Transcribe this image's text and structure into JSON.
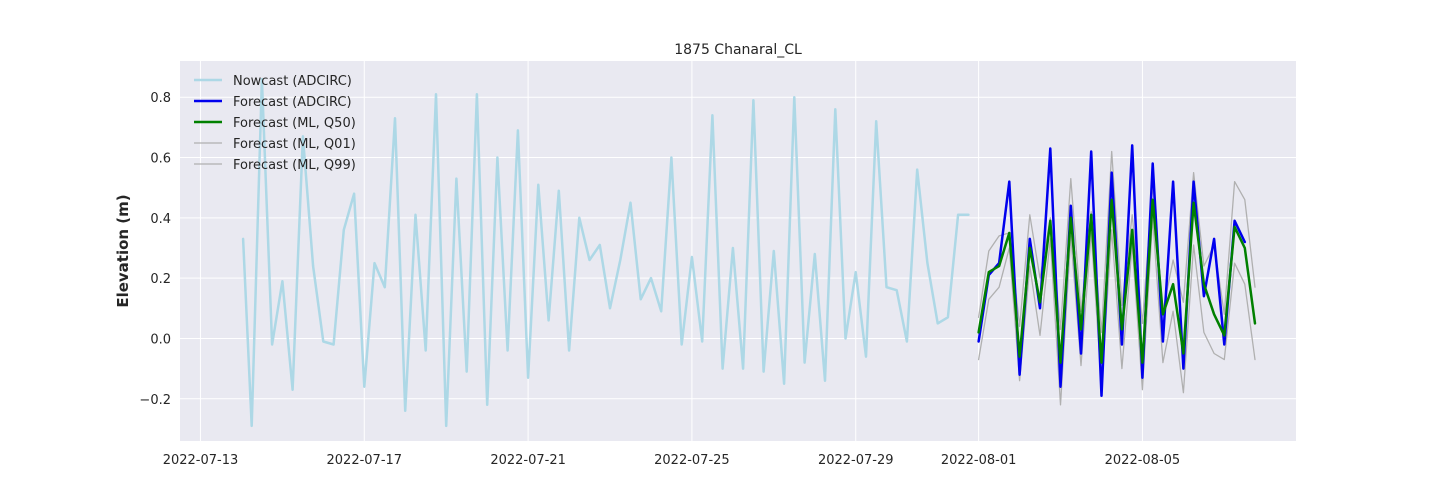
{
  "chart_data": {
    "type": "line",
    "title": "1875 Chanaral_CL",
    "xlabel": "",
    "ylabel": "Elevation (m)",
    "x_type": "date",
    "xlim": [
      "2022-07-12T12:00",
      "2022-08-08T18:00"
    ],
    "ylim": [
      -0.34,
      0.92
    ],
    "x_ticks": [
      "2022-07-13",
      "2022-07-17",
      "2022-07-21",
      "2022-07-25",
      "2022-07-29",
      "2022-08-01",
      "2022-08-05"
    ],
    "y_ticks": [
      -0.2,
      0.0,
      0.2,
      0.4,
      0.6,
      0.8
    ],
    "y_tick_labels": [
      "−0.2",
      "0.0",
      "0.2",
      "0.4",
      "0.6",
      "0.8"
    ],
    "grid": true,
    "background": "#e9e9f1",
    "legend_position": "top-left",
    "series": [
      {
        "name": "Nowcast (ADCIRC)",
        "color": "#add8e6",
        "width": 2.5,
        "points": [
          [
            "2022-07-14T01:00",
            0.33
          ],
          [
            "2022-07-14T06:00",
            -0.29
          ],
          [
            "2022-07-14T12:00",
            0.86
          ],
          [
            "2022-07-14T18:00",
            -0.02
          ],
          [
            "2022-07-15T00:00",
            0.19
          ],
          [
            "2022-07-15T06:00",
            -0.17
          ],
          [
            "2022-07-15T12:00",
            0.67
          ],
          [
            "2022-07-15T18:00",
            0.24
          ],
          [
            "2022-07-16T00:00",
            -0.01
          ],
          [
            "2022-07-16T06:00",
            -0.02
          ],
          [
            "2022-07-16T12:00",
            0.36
          ],
          [
            "2022-07-16T18:00",
            0.48
          ],
          [
            "2022-07-17T00:00",
            -0.16
          ],
          [
            "2022-07-17T06:00",
            0.25
          ],
          [
            "2022-07-17T12:00",
            0.17
          ],
          [
            "2022-07-17T18:00",
            0.73
          ],
          [
            "2022-07-18T00:00",
            -0.24
          ],
          [
            "2022-07-18T06:00",
            0.41
          ],
          [
            "2022-07-18T12:00",
            -0.04
          ],
          [
            "2022-07-18T18:00",
            0.81
          ],
          [
            "2022-07-19T00:00",
            -0.29
          ],
          [
            "2022-07-19T06:00",
            0.53
          ],
          [
            "2022-07-19T12:00",
            -0.11
          ],
          [
            "2022-07-19T18:00",
            0.81
          ],
          [
            "2022-07-20T00:00",
            -0.22
          ],
          [
            "2022-07-20T06:00",
            0.6
          ],
          [
            "2022-07-20T12:00",
            -0.04
          ],
          [
            "2022-07-20T18:00",
            0.69
          ],
          [
            "2022-07-21T00:00",
            -0.13
          ],
          [
            "2022-07-21T06:00",
            0.51
          ],
          [
            "2022-07-21T12:00",
            0.06
          ],
          [
            "2022-07-21T18:00",
            0.49
          ],
          [
            "2022-07-22T00:00",
            -0.04
          ],
          [
            "2022-07-22T06:00",
            0.4
          ],
          [
            "2022-07-22T12:00",
            0.26
          ],
          [
            "2022-07-22T18:00",
            0.31
          ],
          [
            "2022-07-23T00:00",
            0.1
          ],
          [
            "2022-07-23T06:00",
            0.26
          ],
          [
            "2022-07-23T12:00",
            0.45
          ],
          [
            "2022-07-23T18:00",
            0.13
          ],
          [
            "2022-07-24T00:00",
            0.2
          ],
          [
            "2022-07-24T06:00",
            0.09
          ],
          [
            "2022-07-24T12:00",
            0.6
          ],
          [
            "2022-07-24T18:00",
            -0.02
          ],
          [
            "2022-07-25T00:00",
            0.27
          ],
          [
            "2022-07-25T06:00",
            -0.01
          ],
          [
            "2022-07-25T12:00",
            0.74
          ],
          [
            "2022-07-25T18:00",
            -0.1
          ],
          [
            "2022-07-26T00:00",
            0.3
          ],
          [
            "2022-07-26T06:00",
            -0.1
          ],
          [
            "2022-07-26T12:00",
            0.79
          ],
          [
            "2022-07-26T18:00",
            -0.11
          ],
          [
            "2022-07-27T00:00",
            0.29
          ],
          [
            "2022-07-27T06:00",
            -0.15
          ],
          [
            "2022-07-27T12:00",
            0.8
          ],
          [
            "2022-07-27T18:00",
            -0.08
          ],
          [
            "2022-07-28T00:00",
            0.28
          ],
          [
            "2022-07-28T06:00",
            -0.14
          ],
          [
            "2022-07-28T12:00",
            0.76
          ],
          [
            "2022-07-28T18:00",
            0.0
          ],
          [
            "2022-07-29T00:00",
            0.22
          ],
          [
            "2022-07-29T06:00",
            -0.06
          ],
          [
            "2022-07-29T12:00",
            0.72
          ],
          [
            "2022-07-29T18:00",
            0.17
          ],
          [
            "2022-07-30T00:00",
            0.16
          ],
          [
            "2022-07-30T06:00",
            -0.01
          ],
          [
            "2022-07-30T12:00",
            0.56
          ],
          [
            "2022-07-30T18:00",
            0.25
          ],
          [
            "2022-07-31T00:00",
            0.05
          ],
          [
            "2022-07-31T06:00",
            0.07
          ],
          [
            "2022-07-31T12:00",
            0.41
          ],
          [
            "2022-07-31T18:00",
            0.41
          ]
        ]
      },
      {
        "name": "Forecast (ADCIRC)",
        "color": "#0000ee",
        "width": 2.5,
        "points": [
          [
            "2022-08-01T00:00",
            -0.01
          ],
          [
            "2022-08-01T06:00",
            0.21
          ],
          [
            "2022-08-01T12:00",
            0.25
          ],
          [
            "2022-08-01T18:00",
            0.52
          ],
          [
            "2022-08-02T00:00",
            -0.12
          ],
          [
            "2022-08-02T06:00",
            0.33
          ],
          [
            "2022-08-02T12:00",
            0.1
          ],
          [
            "2022-08-02T18:00",
            0.63
          ],
          [
            "2022-08-03T00:00",
            -0.16
          ],
          [
            "2022-08-03T06:00",
            0.44
          ],
          [
            "2022-08-03T12:00",
            -0.05
          ],
          [
            "2022-08-03T18:00",
            0.62
          ],
          [
            "2022-08-04T00:00",
            -0.19
          ],
          [
            "2022-08-04T06:00",
            0.55
          ],
          [
            "2022-08-04T12:00",
            -0.02
          ],
          [
            "2022-08-04T18:00",
            0.64
          ],
          [
            "2022-08-05T00:00",
            -0.13
          ],
          [
            "2022-08-05T06:00",
            0.58
          ],
          [
            "2022-08-05T12:00",
            -0.01
          ],
          [
            "2022-08-05T18:00",
            0.52
          ],
          [
            "2022-08-06T00:00",
            -0.1
          ],
          [
            "2022-08-06T06:00",
            0.52
          ],
          [
            "2022-08-06T12:00",
            0.14
          ],
          [
            "2022-08-06T18:00",
            0.33
          ],
          [
            "2022-08-07T00:00",
            -0.02
          ],
          [
            "2022-08-07T06:00",
            0.39
          ],
          [
            "2022-08-07T12:00",
            0.32
          ]
        ]
      },
      {
        "name": "Forecast (ML, Q50)",
        "color": "#008000",
        "width": 2.5,
        "points": [
          [
            "2022-08-01T00:00",
            0.02
          ],
          [
            "2022-08-01T06:00",
            0.22
          ],
          [
            "2022-08-01T12:00",
            0.24
          ],
          [
            "2022-08-01T18:00",
            0.35
          ],
          [
            "2022-08-02T00:00",
            -0.06
          ],
          [
            "2022-08-02T06:00",
            0.3
          ],
          [
            "2022-08-02T12:00",
            0.12
          ],
          [
            "2022-08-02T18:00",
            0.39
          ],
          [
            "2022-08-03T00:00",
            -0.08
          ],
          [
            "2022-08-03T06:00",
            0.4
          ],
          [
            "2022-08-03T12:00",
            0.03
          ],
          [
            "2022-08-03T18:00",
            0.41
          ],
          [
            "2022-08-04T00:00",
            -0.08
          ],
          [
            "2022-08-04T06:00",
            0.46
          ],
          [
            "2022-08-04T12:00",
            0.03
          ],
          [
            "2022-08-04T18:00",
            0.36
          ],
          [
            "2022-08-05T00:00",
            -0.08
          ],
          [
            "2022-08-05T06:00",
            0.46
          ],
          [
            "2022-08-05T12:00",
            0.08
          ],
          [
            "2022-08-05T18:00",
            0.18
          ],
          [
            "2022-08-06T00:00",
            -0.05
          ],
          [
            "2022-08-06T06:00",
            0.45
          ],
          [
            "2022-08-06T12:00",
            0.18
          ],
          [
            "2022-08-06T18:00",
            0.08
          ],
          [
            "2022-08-07T00:00",
            0.01
          ],
          [
            "2022-08-07T06:00",
            0.37
          ],
          [
            "2022-08-07T12:00",
            0.3
          ],
          [
            "2022-08-07T18:00",
            0.05
          ]
        ]
      },
      {
        "name": "Forecast (ML, Q01)",
        "color": "#b0b0b0",
        "width": 1.3,
        "points": [
          [
            "2022-08-01T00:00",
            -0.07
          ],
          [
            "2022-08-01T06:00",
            0.13
          ],
          [
            "2022-08-01T12:00",
            0.17
          ],
          [
            "2022-08-01T18:00",
            0.3
          ],
          [
            "2022-08-02T00:00",
            -0.14
          ],
          [
            "2022-08-02T06:00",
            0.24
          ],
          [
            "2022-08-02T12:00",
            0.01
          ],
          [
            "2022-08-02T18:00",
            0.33
          ],
          [
            "2022-08-03T00:00",
            -0.22
          ],
          [
            "2022-08-03T06:00",
            0.34
          ],
          [
            "2022-08-03T12:00",
            -0.09
          ],
          [
            "2022-08-03T18:00",
            0.35
          ],
          [
            "2022-08-04T00:00",
            -0.16
          ],
          [
            "2022-08-04T06:00",
            0.36
          ],
          [
            "2022-08-04T12:00",
            -0.1
          ],
          [
            "2022-08-04T18:00",
            0.31
          ],
          [
            "2022-08-05T00:00",
            -0.17
          ],
          [
            "2022-08-05T06:00",
            0.4
          ],
          [
            "2022-08-05T12:00",
            -0.08
          ],
          [
            "2022-08-05T18:00",
            0.09
          ],
          [
            "2022-08-06T00:00",
            -0.18
          ],
          [
            "2022-08-06T06:00",
            0.31
          ],
          [
            "2022-08-06T12:00",
            0.02
          ],
          [
            "2022-08-06T18:00",
            -0.05
          ],
          [
            "2022-08-07T00:00",
            -0.07
          ],
          [
            "2022-08-07T06:00",
            0.25
          ],
          [
            "2022-08-07T12:00",
            0.18
          ],
          [
            "2022-08-07T18:00",
            -0.07
          ]
        ]
      },
      {
        "name": "Forecast (ML, Q99)",
        "color": "#b0b0b0",
        "width": 1.3,
        "points": [
          [
            "2022-08-01T00:00",
            0.07
          ],
          [
            "2022-08-01T06:00",
            0.29
          ],
          [
            "2022-08-01T12:00",
            0.34
          ],
          [
            "2022-08-01T18:00",
            0.35
          ],
          [
            "2022-08-02T00:00",
            0.04
          ],
          [
            "2022-08-02T06:00",
            0.41
          ],
          [
            "2022-08-02T12:00",
            0.2
          ],
          [
            "2022-08-02T18:00",
            0.4
          ],
          [
            "2022-08-03T00:00",
            0.03
          ],
          [
            "2022-08-03T06:00",
            0.53
          ],
          [
            "2022-08-03T12:00",
            0.09
          ],
          [
            "2022-08-03T18:00",
            0.42
          ],
          [
            "2022-08-04T00:00",
            0.02
          ],
          [
            "2022-08-04T06:00",
            0.62
          ],
          [
            "2022-08-04T12:00",
            0.11
          ],
          [
            "2022-08-04T18:00",
            0.41
          ],
          [
            "2022-08-05T00:00",
            0.05
          ],
          [
            "2022-08-05T06:00",
            0.51
          ],
          [
            "2022-08-05T12:00",
            0.09
          ],
          [
            "2022-08-05T18:00",
            0.26
          ],
          [
            "2022-08-06T00:00",
            0.12
          ],
          [
            "2022-08-06T06:00",
            0.55
          ],
          [
            "2022-08-06T12:00",
            0.24
          ],
          [
            "2022-08-06T18:00",
            0.31
          ],
          [
            "2022-08-07T00:00",
            0.08
          ],
          [
            "2022-08-07T06:00",
            0.52
          ],
          [
            "2022-08-07T12:00",
            0.46
          ],
          [
            "2022-08-07T18:00",
            0.17
          ]
        ]
      }
    ]
  }
}
